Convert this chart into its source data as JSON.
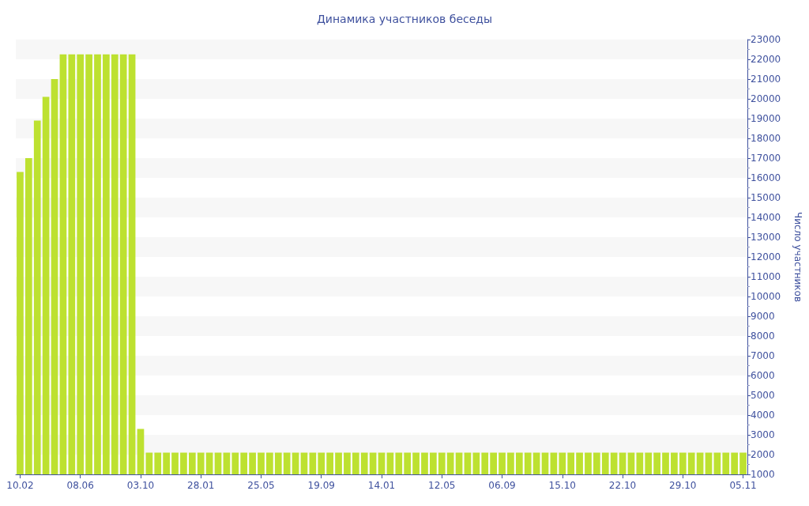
{
  "chart_data": {
    "type": "bar",
    "title": "Динамика участников беседы",
    "ylabel": "Число участников",
    "categories": [
      "10.02",
      null,
      null,
      null,
      null,
      null,
      null,
      "08.06",
      null,
      null,
      null,
      null,
      null,
      null,
      "03.10",
      null,
      null,
      null,
      null,
      null,
      null,
      "28.01",
      null,
      null,
      null,
      null,
      null,
      null,
      "25.05",
      null,
      null,
      null,
      null,
      null,
      null,
      "19.09",
      null,
      null,
      null,
      null,
      null,
      null,
      "14.01",
      null,
      null,
      null,
      null,
      null,
      null,
      "12.05",
      null,
      null,
      null,
      null,
      null,
      null,
      "06.09",
      null,
      null,
      null,
      null,
      null,
      null,
      "15.10",
      null,
      null,
      null,
      null,
      null,
      null,
      "22.10",
      null,
      null,
      null,
      null,
      null,
      null,
      "29.10",
      null,
      null,
      null,
      null,
      null,
      null,
      "05.11"
    ],
    "values": [
      16300,
      17000,
      18900,
      20100,
      21000,
      22250,
      22250,
      22250,
      22250,
      22250,
      22250,
      22250,
      22250,
      22250,
      3300,
      2100,
      2100,
      2100,
      2100,
      2100,
      2100,
      2100,
      2100,
      2100,
      2100,
      2100,
      2100,
      2100,
      2100,
      2100,
      2100,
      2100,
      2100,
      2100,
      2100,
      2100,
      2100,
      2100,
      2100,
      2100,
      2100,
      2100,
      2100,
      2100,
      2100,
      2100,
      2100,
      2100,
      2100,
      2100,
      2100,
      2100,
      2100,
      2100,
      2100,
      2100,
      2100,
      2100,
      2100,
      2100,
      2100,
      2100,
      2100,
      2100,
      2100,
      2100,
      2100,
      2100,
      2100,
      2100,
      2100,
      2100,
      2100,
      2100,
      2100,
      2100,
      2100,
      2100,
      2100,
      2100,
      2100,
      2100,
      2100,
      2100,
      2100
    ],
    "color": "#bde130",
    "ylim": [
      1000,
      23000
    ],
    "yticks": [
      1000,
      2000,
      3000,
      4000,
      5000,
      6000,
      7000,
      8000,
      9000,
      10000,
      11000,
      12000,
      13000,
      14000,
      15000,
      16000,
      17000,
      18000,
      19000,
      20000,
      21000,
      22000,
      23000
    ],
    "grid": false
  }
}
